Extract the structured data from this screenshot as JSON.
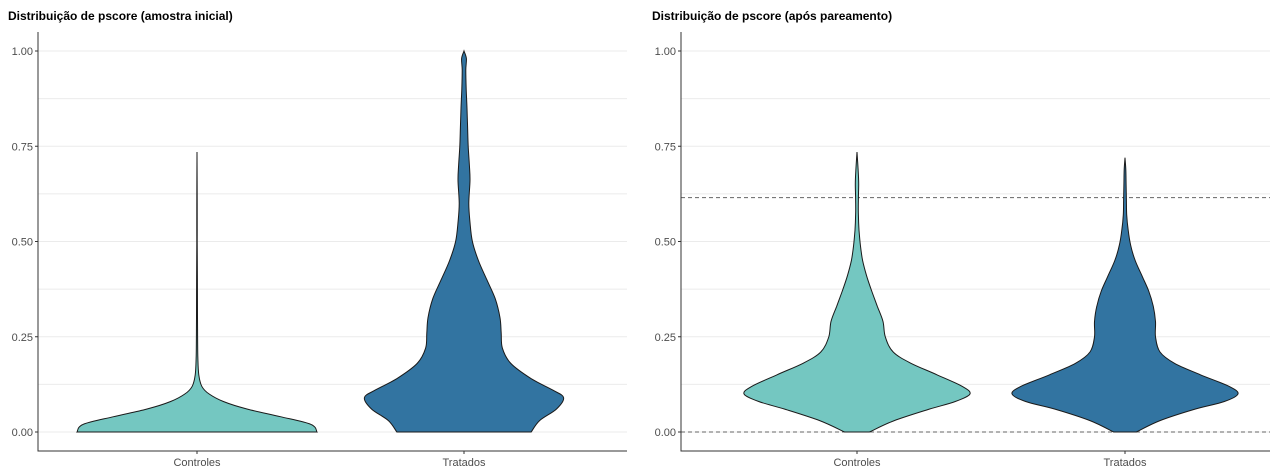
{
  "chart_data": [
    {
      "type": "violin",
      "title": "Distribuição de pscore (amostra inicial)",
      "xlabel": "",
      "ylabel": "",
      "ylim": [
        0,
        1
      ],
      "yticks": [
        "0.00",
        "0.25",
        "0.50",
        "0.75",
        "1.00"
      ],
      "ytick_values": [
        0,
        0.25,
        0.5,
        0.75,
        1
      ],
      "grid": true,
      "categories": [
        "Controles",
        "Tratados"
      ],
      "reference_lines": [],
      "series": [
        {
          "category": "Controles",
          "color": "#74c7c1",
          "density": [
            [
              0.0,
              1.0
            ],
            [
              0.02,
              0.95
            ],
            [
              0.04,
              0.7
            ],
            [
              0.06,
              0.42
            ],
            [
              0.08,
              0.22
            ],
            [
              0.1,
              0.1
            ],
            [
              0.12,
              0.04
            ],
            [
              0.15,
              0.015
            ],
            [
              0.2,
              0.007
            ],
            [
              0.3,
              0.004
            ],
            [
              0.4,
              0.003
            ],
            [
              0.5,
              0.002
            ],
            [
              0.6,
              0.002
            ],
            [
              0.735,
              0.0
            ]
          ]
        },
        {
          "category": "Tratados",
          "color": "#3274a1",
          "density": [
            [
              0.0,
              0.56
            ],
            [
              0.03,
              0.63
            ],
            [
              0.06,
              0.77
            ],
            [
              0.09,
              0.83
            ],
            [
              0.11,
              0.74
            ],
            [
              0.14,
              0.56
            ],
            [
              0.18,
              0.39
            ],
            [
              0.22,
              0.32
            ],
            [
              0.26,
              0.31
            ],
            [
              0.3,
              0.3
            ],
            [
              0.35,
              0.26
            ],
            [
              0.4,
              0.19
            ],
            [
              0.45,
              0.12
            ],
            [
              0.5,
              0.07
            ],
            [
              0.55,
              0.05
            ],
            [
              0.6,
              0.04
            ],
            [
              0.66,
              0.05
            ],
            [
              0.7,
              0.045
            ],
            [
              0.75,
              0.035
            ],
            [
              0.8,
              0.03
            ],
            [
              0.85,
              0.025
            ],
            [
              0.9,
              0.018
            ],
            [
              0.95,
              0.015
            ],
            [
              0.98,
              0.02
            ],
            [
              1.0,
              0.0
            ]
          ]
        }
      ]
    },
    {
      "type": "violin",
      "title": "Distribuição de pscore (após pareamento)",
      "xlabel": "",
      "ylabel": "",
      "ylim": [
        0,
        1
      ],
      "yticks": [
        "0.00",
        "0.25",
        "0.50",
        "0.75",
        "1.00"
      ],
      "ytick_values": [
        0,
        0.25,
        0.5,
        0.75,
        1
      ],
      "grid": true,
      "categories": [
        "Controles",
        "Tratados"
      ],
      "reference_lines": [
        0.0,
        0.615
      ],
      "series": [
        {
          "category": "Controles",
          "color": "#74c7c1",
          "density": [
            [
              0.0,
              0.11
            ],
            [
              0.03,
              0.33
            ],
            [
              0.06,
              0.64
            ],
            [
              0.08,
              0.87
            ],
            [
              0.1,
              1.0
            ],
            [
              0.12,
              0.93
            ],
            [
              0.15,
              0.71
            ],
            [
              0.18,
              0.48
            ],
            [
              0.21,
              0.32
            ],
            [
              0.25,
              0.25
            ],
            [
              0.29,
              0.23
            ],
            [
              0.33,
              0.18
            ],
            [
              0.37,
              0.13
            ],
            [
              0.41,
              0.085
            ],
            [
              0.45,
              0.05
            ],
            [
              0.49,
              0.03
            ],
            [
              0.53,
              0.018
            ],
            [
              0.57,
              0.012
            ],
            [
              0.61,
              0.012
            ],
            [
              0.65,
              0.015
            ],
            [
              0.69,
              0.01
            ],
            [
              0.735,
              0.0
            ]
          ]
        },
        {
          "category": "Tratados",
          "color": "#3274a1",
          "density": [
            [
              0.0,
              0.1
            ],
            [
              0.03,
              0.31
            ],
            [
              0.06,
              0.62
            ],
            [
              0.08,
              0.88
            ],
            [
              0.1,
              1.0
            ],
            [
              0.12,
              0.92
            ],
            [
              0.15,
              0.67
            ],
            [
              0.18,
              0.44
            ],
            [
              0.21,
              0.31
            ],
            [
              0.25,
              0.27
            ],
            [
              0.29,
              0.27
            ],
            [
              0.33,
              0.25
            ],
            [
              0.37,
              0.21
            ],
            [
              0.41,
              0.15
            ],
            [
              0.45,
              0.09
            ],
            [
              0.49,
              0.05
            ],
            [
              0.53,
              0.028
            ],
            [
              0.57,
              0.015
            ],
            [
              0.61,
              0.012
            ],
            [
              0.65,
              0.01
            ],
            [
              0.69,
              0.007
            ],
            [
              0.72,
              0.0
            ]
          ]
        }
      ]
    }
  ]
}
